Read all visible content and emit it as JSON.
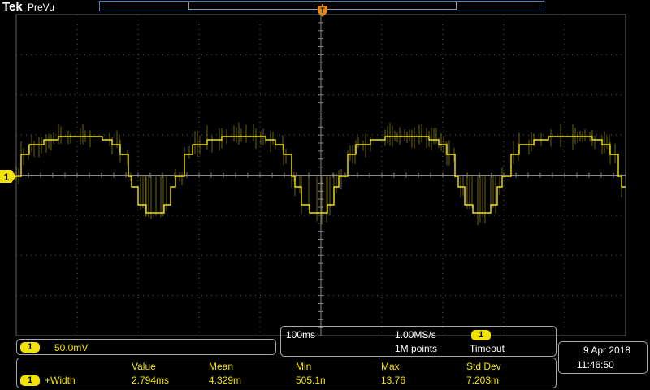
{
  "header": {
    "brand": "Tek",
    "mode": "PreVu"
  },
  "channel": {
    "number": "1",
    "scale": "50.0mV",
    "trace_color": "#f2e400"
  },
  "horizontal": {
    "time_per_div": "100ms",
    "sample_rate": "1.00MS/s",
    "record_length": "1M points"
  },
  "trigger": {
    "source": "1",
    "status": "Timeout"
  },
  "datetime": {
    "date": "9 Apr 2018",
    "time": "11:46:50"
  },
  "measurements": {
    "headers": [
      "Value",
      "Mean",
      "Min",
      "Max",
      "Std Dev"
    ],
    "rows": [
      {
        "channel": "1",
        "name": "+Width",
        "values": [
          "2.794ms",
          "4.329m",
          "505.1n",
          "13.76",
          "7.203m"
        ]
      }
    ]
  },
  "colors": {
    "trace": "#f2e400",
    "grid": "#5f5f5f",
    "trigger_marker": "#e08a1e",
    "record_bar": "#4a7fb0"
  }
}
